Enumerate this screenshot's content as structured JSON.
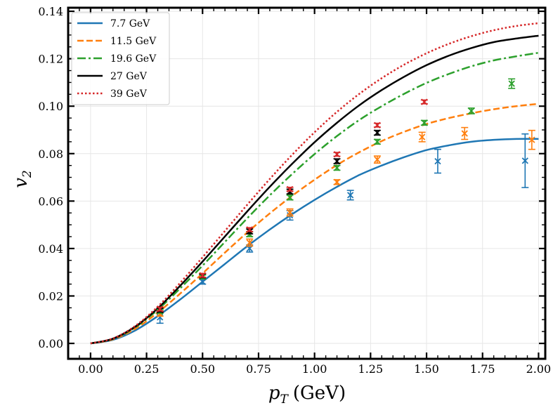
{
  "chart_data": {
    "type": "line",
    "title": "",
    "xlabel_main": "p",
    "xlabel_sub": "T",
    "xlabel_unit": "(GeV)",
    "ylabel_main": "v",
    "ylabel_sub": "2",
    "xlim": [
      -0.1,
      2.03
    ],
    "ylim": [
      -0.0065,
      0.1415
    ],
    "xticks": [
      "0.00",
      "0.25",
      "0.50",
      "0.75",
      "1.00",
      "1.25",
      "1.50",
      "1.75",
      "2.00"
    ],
    "yticks": [
      "0.00",
      "0.02",
      "0.04",
      "0.06",
      "0.08",
      "0.10",
      "0.12",
      "0.14"
    ],
    "grid": true,
    "legend_position": "top-left",
    "series": [
      {
        "name": "7.7 GeV",
        "color": "#1f77b4",
        "dash": "solid",
        "x": [
          0,
          0.1,
          0.2,
          0.3,
          0.4,
          0.5,
          0.6,
          0.7,
          0.8,
          0.9,
          1.0,
          1.1,
          1.2,
          1.3,
          1.4,
          1.5,
          1.6,
          1.7,
          1.8,
          1.9,
          2.0
        ],
        "y": [
          0.0,
          0.0015,
          0.0055,
          0.0115,
          0.0185,
          0.026,
          0.0335,
          0.041,
          0.048,
          0.0545,
          0.0605,
          0.066,
          0.071,
          0.075,
          0.0785,
          0.0815,
          0.0835,
          0.085,
          0.0858,
          0.0862,
          0.0862
        ],
        "points": [
          {
            "x": 0.31,
            "y": 0.011,
            "err": 0.0025
          },
          {
            "x": 0.5,
            "y": 0.026,
            "err": 0.001
          },
          {
            "x": 0.71,
            "y": 0.04,
            "err": 0.0015
          },
          {
            "x": 0.89,
            "y": 0.054,
            "err": 0.002
          },
          {
            "x": 1.16,
            "y": 0.0625,
            "err": 0.002
          },
          {
            "x": 1.55,
            "y": 0.0768,
            "err": 0.005
          },
          {
            "x": 1.94,
            "y": 0.077,
            "err": 0.0113
          }
        ]
      },
      {
        "name": "11.5 GeV",
        "color": "#ff7f0e",
        "dash": "9,4",
        "x": [
          0,
          0.1,
          0.2,
          0.3,
          0.4,
          0.5,
          0.6,
          0.7,
          0.8,
          0.9,
          1.0,
          1.1,
          1.2,
          1.3,
          1.4,
          1.5,
          1.6,
          1.7,
          1.8,
          1.9,
          2.0
        ],
        "y": [
          0.0,
          0.0017,
          0.0062,
          0.013,
          0.021,
          0.0295,
          0.0383,
          0.0468,
          0.0548,
          0.0622,
          0.069,
          0.0752,
          0.0806,
          0.0853,
          0.0892,
          0.0925,
          0.095,
          0.097,
          0.0987,
          0.1,
          0.101
        ],
        "points": [
          {
            "x": 0.31,
            "y": 0.0125,
            "err": 0.001
          },
          {
            "x": 0.5,
            "y": 0.0285,
            "err": 0.001
          },
          {
            "x": 0.71,
            "y": 0.0425,
            "err": 0.0015
          },
          {
            "x": 0.89,
            "y": 0.0552,
            "err": 0.0015
          },
          {
            "x": 1.1,
            "y": 0.068,
            "err": 0.001
          },
          {
            "x": 1.28,
            "y": 0.0775,
            "err": 0.0015
          },
          {
            "x": 1.48,
            "y": 0.087,
            "err": 0.002
          },
          {
            "x": 1.67,
            "y": 0.0885,
            "err": 0.0025
          },
          {
            "x": 1.97,
            "y": 0.0858,
            "err": 0.004
          }
        ]
      },
      {
        "name": "19.6 GeV",
        "color": "#2ca02c",
        "dash": "12,4,3,4",
        "x": [
          0,
          0.1,
          0.2,
          0.3,
          0.4,
          0.5,
          0.6,
          0.7,
          0.8,
          0.9,
          1.0,
          1.1,
          1.2,
          1.3,
          1.4,
          1.5,
          1.6,
          1.7,
          1.8,
          1.9,
          2.0
        ],
        "y": [
          0.0,
          0.0019,
          0.0068,
          0.0142,
          0.0232,
          0.0328,
          0.0428,
          0.0528,
          0.0624,
          0.0714,
          0.0798,
          0.0874,
          0.0942,
          0.1,
          0.1052,
          0.1098,
          0.1136,
          0.1168,
          0.1193,
          0.121,
          0.1225
        ],
        "points": [
          {
            "x": 0.31,
            "y": 0.0135,
            "err": 0.0008
          },
          {
            "x": 0.5,
            "y": 0.028,
            "err": 0.0008
          },
          {
            "x": 0.71,
            "y": 0.046,
            "err": 0.001
          },
          {
            "x": 0.89,
            "y": 0.0615,
            "err": 0.001
          },
          {
            "x": 1.1,
            "y": 0.074,
            "err": 0.001
          },
          {
            "x": 1.28,
            "y": 0.085,
            "err": 0.001
          },
          {
            "x": 1.49,
            "y": 0.093,
            "err": 0.001
          },
          {
            "x": 1.7,
            "y": 0.098,
            "err": 0.0012
          },
          {
            "x": 1.88,
            "y": 0.1095,
            "err": 0.002
          }
        ]
      },
      {
        "name": "27 GeV",
        "color": "#000000",
        "dash": "solid",
        "x": [
          0,
          0.1,
          0.2,
          0.3,
          0.4,
          0.5,
          0.6,
          0.7,
          0.8,
          0.9,
          1.0,
          1.1,
          1.2,
          1.3,
          1.4,
          1.5,
          1.6,
          1.7,
          1.8,
          1.9,
          2.0
        ],
        "y": [
          0.0,
          0.002,
          0.0071,
          0.0148,
          0.0243,
          0.0345,
          0.0451,
          0.0557,
          0.066,
          0.0757,
          0.0848,
          0.093,
          0.1004,
          0.1068,
          0.1124,
          0.1173,
          0.1213,
          0.1245,
          0.127,
          0.1285,
          0.1297
        ],
        "points": [
          {
            "x": 0.31,
            "y": 0.014,
            "err": 0.0008
          },
          {
            "x": 0.5,
            "y": 0.0285,
            "err": 0.0008
          },
          {
            "x": 0.71,
            "y": 0.0472,
            "err": 0.001
          },
          {
            "x": 0.89,
            "y": 0.064,
            "err": 0.001
          },
          {
            "x": 1.1,
            "y": 0.0768,
            "err": 0.001
          },
          {
            "x": 1.28,
            "y": 0.0888,
            "err": 0.001
          }
        ]
      },
      {
        "name": "39 GeV",
        "color": "#d62728",
        "dash": "2.5,3",
        "x": [
          0,
          0.1,
          0.2,
          0.3,
          0.4,
          0.5,
          0.6,
          0.7,
          0.8,
          0.9,
          1.0,
          1.1,
          1.2,
          1.3,
          1.4,
          1.5,
          1.6,
          1.7,
          1.8,
          1.9,
          2.0
        ],
        "y": [
          0.0,
          0.0021,
          0.0074,
          0.0155,
          0.0255,
          0.0363,
          0.0474,
          0.0585,
          0.0693,
          0.0795,
          0.089,
          0.0976,
          0.1052,
          0.1118,
          0.1175,
          0.1223,
          0.1263,
          0.1295,
          0.132,
          0.1338,
          0.135
        ],
        "points": [
          {
            "x": 0.31,
            "y": 0.0145,
            "err": 0.0008
          },
          {
            "x": 0.5,
            "y": 0.0287,
            "err": 0.0008
          },
          {
            "x": 0.71,
            "y": 0.048,
            "err": 0.0008
          },
          {
            "x": 0.89,
            "y": 0.065,
            "err": 0.0008
          },
          {
            "x": 1.1,
            "y": 0.0797,
            "err": 0.0008
          },
          {
            "x": 1.28,
            "y": 0.092,
            "err": 0.0008
          },
          {
            "x": 1.49,
            "y": 0.1018,
            "err": 0.0008
          }
        ]
      }
    ]
  }
}
